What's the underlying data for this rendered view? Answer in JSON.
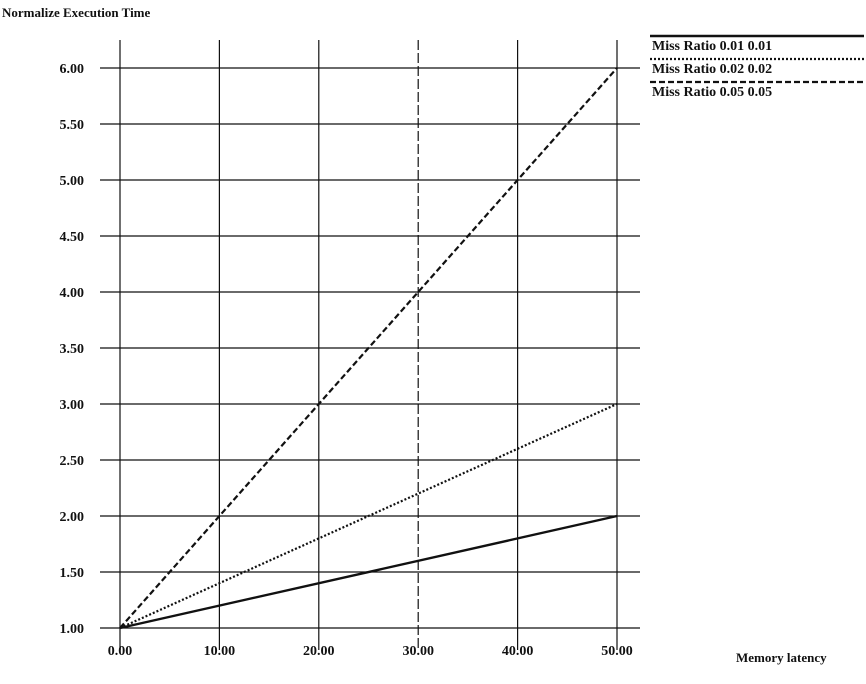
{
  "chart_data": {
    "type": "line",
    "ylabel": "Normalize Execution Time",
    "xlabel": "Memory latency",
    "xlim": [
      0,
      50
    ],
    "ylim": [
      1,
      6
    ],
    "x_ticks": [
      "0.00",
      "10.00",
      "20.00",
      "30.00",
      "40.00",
      "50.00"
    ],
    "y_ticks": [
      "1.00",
      "1.50",
      "2.00",
      "2.50",
      "3.00",
      "3.50",
      "4.00",
      "4.50",
      "5.00",
      "5.50",
      "6.00"
    ],
    "grid": true,
    "legend_position": "top-right",
    "series": [
      {
        "name": "Miss Ratio 0.01 0.01",
        "style": "solid",
        "x": [
          0,
          50
        ],
        "y": [
          1.0,
          2.0
        ]
      },
      {
        "name": "Miss Ratio 0.02 0.02",
        "style": "dotted",
        "x": [
          0,
          50
        ],
        "y": [
          1.0,
          3.0
        ]
      },
      {
        "name": "Miss Ratio 0.05 0.05",
        "style": "dashed",
        "x": [
          0,
          50
        ],
        "y": [
          1.0,
          6.0
        ]
      }
    ]
  }
}
